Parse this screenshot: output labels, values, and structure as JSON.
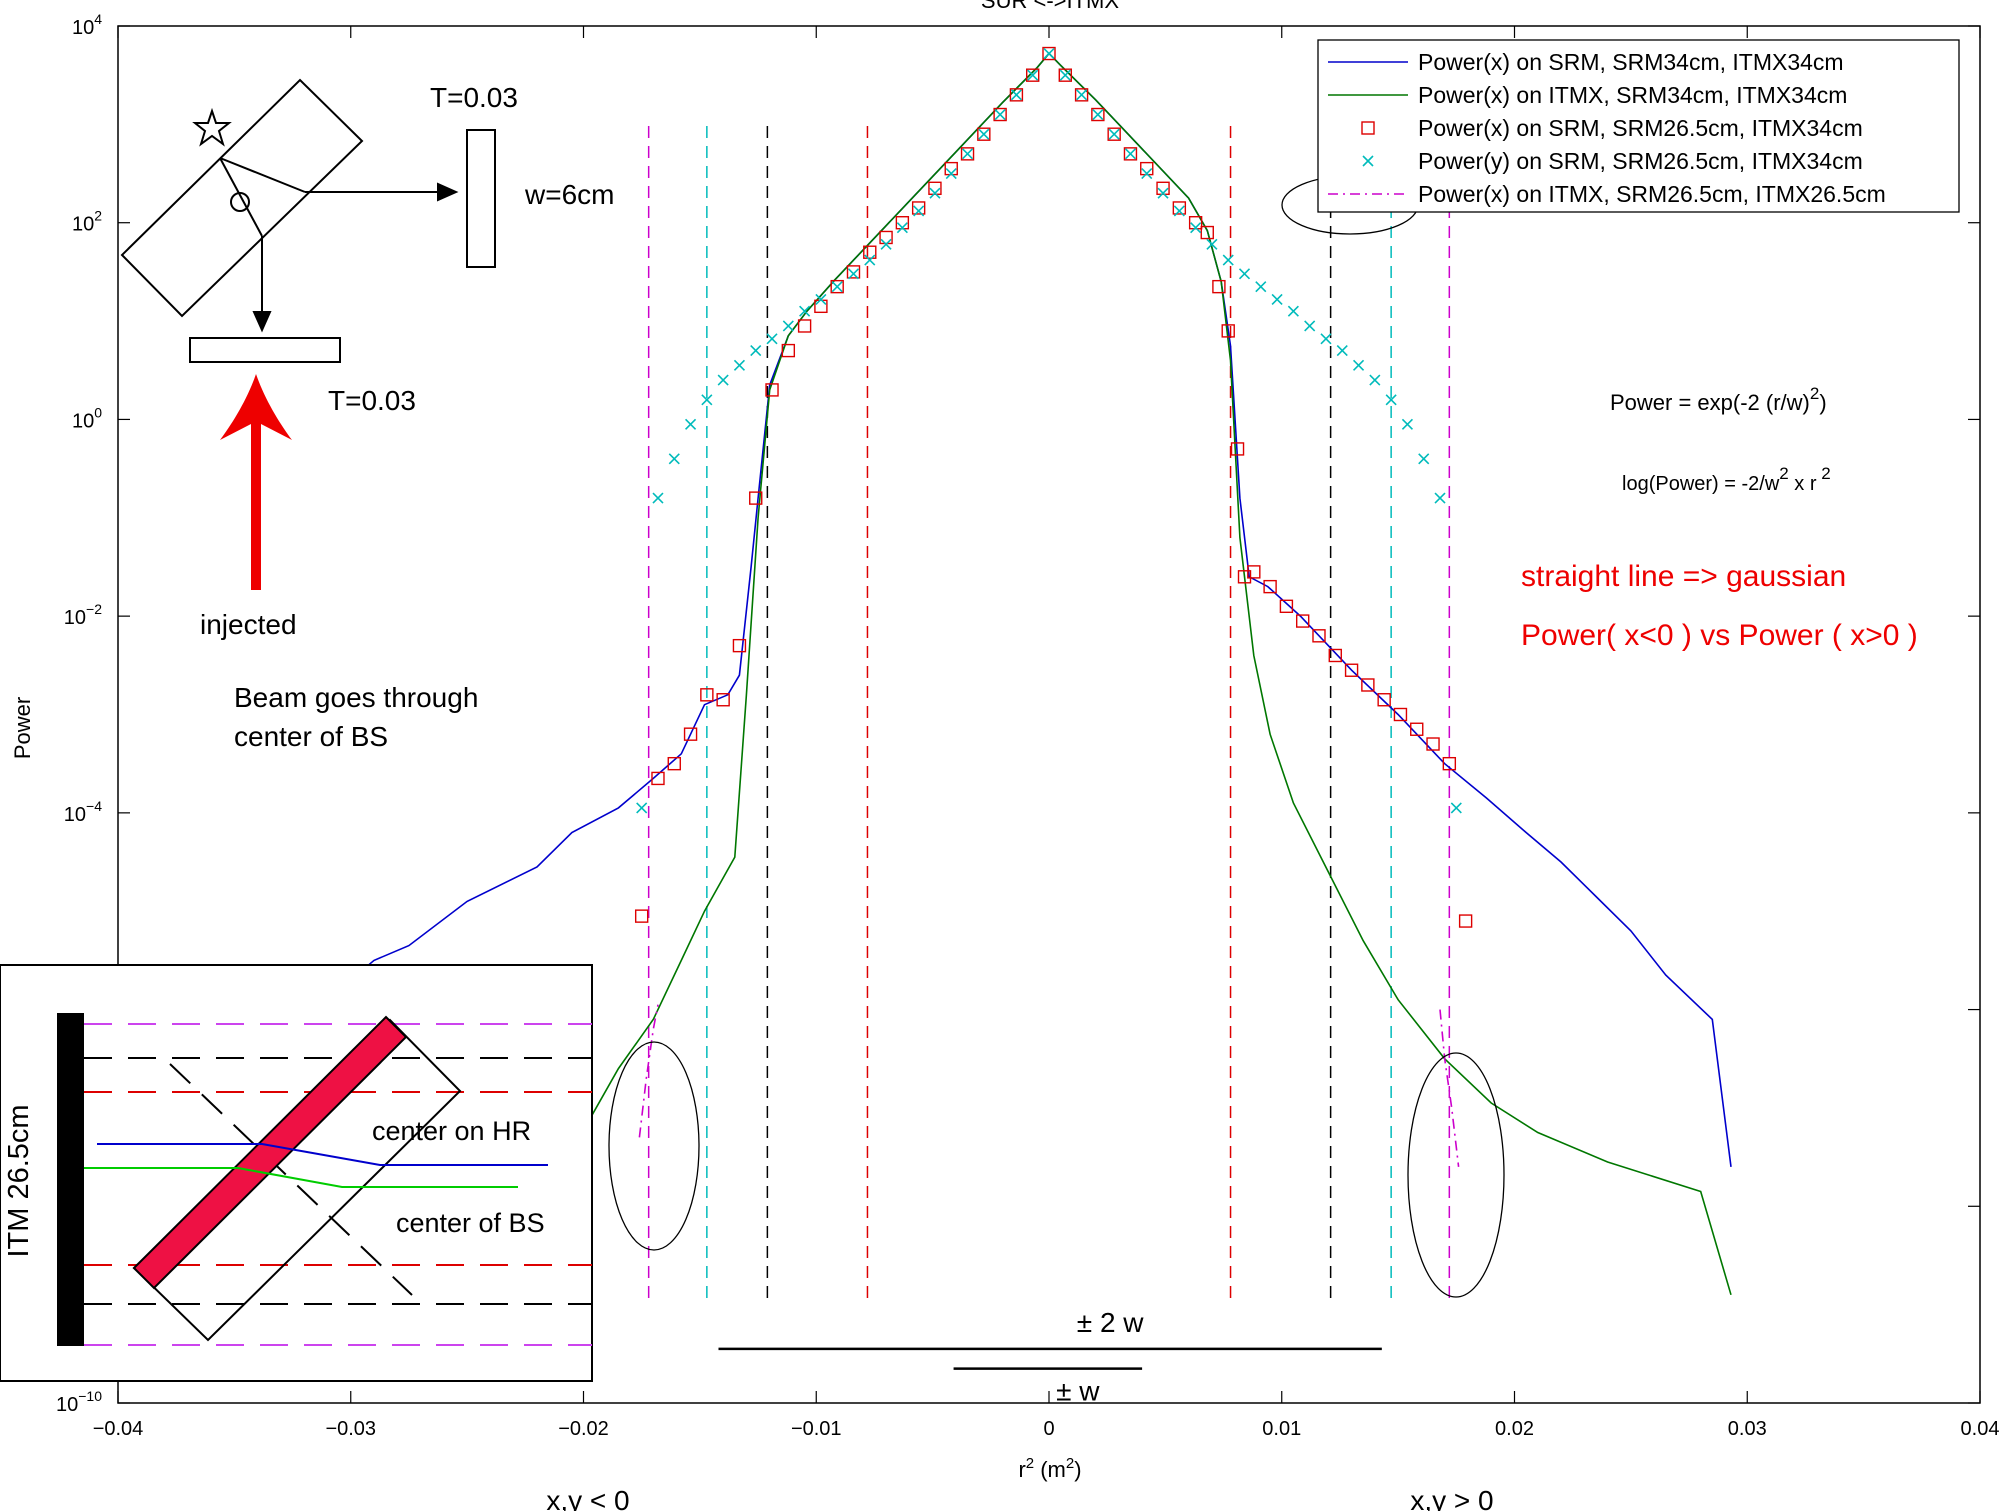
{
  "chart_data": {
    "type": "line",
    "title": "SUR <->ITMX",
    "xlabel_main": "r",
    "xlabel_sup": "2",
    "xlabel_unit": " (m",
    "xlabel_unit_sup": "2",
    "xlabel_close": ")",
    "ylabel": "Power",
    "xlim": [
      -0.04,
      0.04
    ],
    "ylim_log10": [
      -10,
      4
    ],
    "y_scale": "log",
    "grid": false,
    "legend_placement": "top-right",
    "x_ticks": [
      {
        "v": -0.04,
        "label": "−0.04"
      },
      {
        "v": -0.03,
        "label": "−0.03"
      },
      {
        "v": -0.02,
        "label": "−0.02"
      },
      {
        "v": -0.01,
        "label": "−0.01"
      },
      {
        "v": 0,
        "label": "0"
      },
      {
        "v": 0.01,
        "label": "0.01"
      },
      {
        "v": 0.02,
        "label": "0.02"
      },
      {
        "v": 0.03,
        "label": "0.03"
      },
      {
        "v": 0.04,
        "label": "0.04"
      }
    ],
    "y_ticks": [
      {
        "exp": 4,
        "base": "10",
        "sup": "4"
      },
      {
        "exp": 2,
        "base": "10",
        "sup": "2"
      },
      {
        "exp": 0,
        "base": "10",
        "sup": "0"
      },
      {
        "exp": -2,
        "base": "10",
        "sup": "−2"
      },
      {
        "exp": -4,
        "base": "10",
        "sup": "−4"
      },
      {
        "exp": -6,
        "base": "",
        "sup": ""
      },
      {
        "exp": -8,
        "base": "",
        "sup": ""
      },
      {
        "exp": -10,
        "base": "10",
        "sup": "−10"
      }
    ],
    "series": [
      {
        "name": "Power(x) on SRM, SRM34cm, ITMX34cm",
        "color": "#0000cc",
        "style": "solid",
        "marker": "none",
        "points": [
          [
            -0.0345,
            -6.4
          ],
          [
            -0.0335,
            -6.25
          ],
          [
            -0.031,
            -5.9
          ],
          [
            -0.029,
            -5.5
          ],
          [
            -0.0275,
            -5.35
          ],
          [
            -0.025,
            -4.9
          ],
          [
            -0.022,
            -4.55
          ],
          [
            -0.0205,
            -4.2
          ],
          [
            -0.0185,
            -3.95
          ],
          [
            -0.017,
            -3.65
          ],
          [
            -0.0158,
            -3.4
          ],
          [
            -0.0148,
            -2.9
          ],
          [
            -0.0138,
            -2.8
          ],
          [
            -0.0133,
            -2.6
          ],
          [
            -0.0128,
            -1.5
          ],
          [
            -0.0125,
            -0.8
          ],
          [
            -0.012,
            0.35
          ],
          [
            -0.0112,
            0.85
          ],
          [
            -0.0104,
            1.1
          ],
          [
            -0.0092,
            1.42
          ],
          [
            -0.008,
            1.72
          ],
          [
            -0.006,
            2.22
          ],
          [
            -0.004,
            2.72
          ],
          [
            -0.002,
            3.22
          ],
          [
            -0.0005,
            3.58
          ],
          [
            0,
            3.72
          ],
          [
            0.0005,
            3.6
          ],
          [
            0.002,
            3.25
          ],
          [
            0.004,
            2.75
          ],
          [
            0.006,
            2.25
          ],
          [
            0.0068,
            1.92
          ],
          [
            0.0074,
            1.4
          ],
          [
            0.0078,
            0.75
          ],
          [
            0.0082,
            -0.8
          ],
          [
            0.0086,
            -1.6
          ],
          [
            0.0094,
            -1.7
          ],
          [
            0.0108,
            -2.0
          ],
          [
            0.013,
            -2.55
          ],
          [
            0.015,
            -3.0
          ],
          [
            0.017,
            -3.5
          ],
          [
            0.0188,
            -3.85
          ],
          [
            0.0205,
            -4.2
          ],
          [
            0.022,
            -4.5
          ],
          [
            0.0235,
            -4.85
          ],
          [
            0.025,
            -5.2
          ],
          [
            0.0265,
            -5.65
          ],
          [
            0.0285,
            -6.1
          ],
          [
            0.0293,
            -7.6
          ]
        ]
      },
      {
        "name": "Power(x) on ITMX, SRM34cm, ITMX34cm",
        "color": "#007700",
        "style": "solid",
        "marker": "none",
        "points": [
          [
            -0.0197,
            -7.1
          ],
          [
            -0.0185,
            -6.6
          ],
          [
            -0.017,
            -6.1
          ],
          [
            -0.0158,
            -5.5
          ],
          [
            -0.0148,
            -5.0
          ],
          [
            -0.0135,
            -4.45
          ],
          [
            -0.013,
            -2.8
          ],
          [
            -0.0125,
            -1.0
          ],
          [
            -0.012,
            0.3
          ],
          [
            -0.0112,
            0.85
          ],
          [
            -0.0104,
            1.1
          ],
          [
            -0.0092,
            1.42
          ],
          [
            -0.008,
            1.72
          ],
          [
            -0.006,
            2.22
          ],
          [
            -0.004,
            2.72
          ],
          [
            -0.002,
            3.22
          ],
          [
            -0.0005,
            3.58
          ],
          [
            0,
            3.72
          ],
          [
            0.0005,
            3.6
          ],
          [
            0.002,
            3.25
          ],
          [
            0.004,
            2.75
          ],
          [
            0.006,
            2.25
          ],
          [
            0.0068,
            1.92
          ],
          [
            0.0074,
            1.4
          ],
          [
            0.0078,
            0.6
          ],
          [
            0.0082,
            -1.2
          ],
          [
            0.0088,
            -2.4
          ],
          [
            0.0095,
            -3.2
          ],
          [
            0.0105,
            -3.9
          ],
          [
            0.012,
            -4.6
          ],
          [
            0.0135,
            -5.3
          ],
          [
            0.015,
            -5.9
          ],
          [
            0.017,
            -6.5
          ],
          [
            0.019,
            -6.95
          ],
          [
            0.021,
            -7.25
          ],
          [
            0.024,
            -7.55
          ],
          [
            0.028,
            -7.85
          ],
          [
            0.0293,
            -8.9
          ]
        ]
      },
      {
        "name": "Power(x) on SRM, SRM26.5cm, ITMX34cm",
        "color": "#dd0000",
        "style": "none",
        "marker": "square",
        "points": [
          [
            -0.0175,
            -5.05
          ],
          [
            -0.0168,
            -3.65
          ],
          [
            -0.0161,
            -3.5
          ],
          [
            -0.0154,
            -3.2
          ],
          [
            -0.0147,
            -2.8
          ],
          [
            -0.014,
            -2.85
          ],
          [
            -0.0133,
            -2.3
          ],
          [
            -0.0126,
            -0.8
          ],
          [
            -0.0119,
            0.3
          ],
          [
            -0.0112,
            0.7
          ],
          [
            -0.0105,
            0.95
          ],
          [
            -0.0098,
            1.15
          ],
          [
            -0.0091,
            1.35
          ],
          [
            -0.0084,
            1.5
          ],
          [
            -0.0077,
            1.7
          ],
          [
            -0.007,
            1.85
          ],
          [
            -0.0063,
            2.0
          ],
          [
            -0.0056,
            2.15
          ],
          [
            -0.0049,
            2.35
          ],
          [
            -0.0042,
            2.55
          ],
          [
            -0.0035,
            2.7
          ],
          [
            -0.0028,
            2.9
          ],
          [
            -0.0021,
            3.1
          ],
          [
            -0.0014,
            3.3
          ],
          [
            -0.0007,
            3.5
          ],
          [
            0,
            3.72
          ],
          [
            0.0007,
            3.5
          ],
          [
            0.0014,
            3.3
          ],
          [
            0.0021,
            3.1
          ],
          [
            0.0028,
            2.9
          ],
          [
            0.0035,
            2.7
          ],
          [
            0.0042,
            2.55
          ],
          [
            0.0049,
            2.35
          ],
          [
            0.0056,
            2.15
          ],
          [
            0.0063,
            2.0
          ],
          [
            0.0068,
            1.9
          ],
          [
            0.0073,
            1.35
          ],
          [
            0.0077,
            0.9
          ],
          [
            0.0081,
            -0.3
          ],
          [
            0.0084,
            -1.6
          ],
          [
            0.0088,
            -1.55
          ],
          [
            0.0095,
            -1.7
          ],
          [
            0.0102,
            -1.9
          ],
          [
            0.0109,
            -2.05
          ],
          [
            0.0116,
            -2.2
          ],
          [
            0.0123,
            -2.4
          ],
          [
            0.013,
            -2.55
          ],
          [
            0.0137,
            -2.7
          ],
          [
            0.0144,
            -2.85
          ],
          [
            0.0151,
            -3.0
          ],
          [
            0.0158,
            -3.15
          ],
          [
            0.0165,
            -3.3
          ],
          [
            0.0172,
            -3.5
          ],
          [
            0.0179,
            -5.1
          ]
        ]
      },
      {
        "name": "Power(y) on SRM, SRM26.5cm, ITMX34cm",
        "color": "#00bbbb",
        "style": "none",
        "marker": "cross",
        "points": [
          [
            -0.0175,
            -3.95
          ],
          [
            -0.0168,
            -0.8
          ],
          [
            -0.0161,
            -0.4
          ],
          [
            -0.0154,
            -0.05
          ],
          [
            -0.0147,
            0.2
          ],
          [
            -0.014,
            0.4
          ],
          [
            -0.0133,
            0.55
          ],
          [
            -0.0126,
            0.7
          ],
          [
            -0.0119,
            0.82
          ],
          [
            -0.0112,
            0.95
          ],
          [
            -0.0105,
            1.1
          ],
          [
            -0.0098,
            1.22
          ],
          [
            -0.0091,
            1.35
          ],
          [
            -0.0084,
            1.48
          ],
          [
            -0.0077,
            1.62
          ],
          [
            -0.007,
            1.78
          ],
          [
            -0.0063,
            1.95
          ],
          [
            -0.0056,
            2.12
          ],
          [
            -0.0049,
            2.3
          ],
          [
            -0.0042,
            2.5
          ],
          [
            -0.0035,
            2.7
          ],
          [
            -0.0028,
            2.9
          ],
          [
            -0.0021,
            3.1
          ],
          [
            -0.0014,
            3.3
          ],
          [
            -0.0007,
            3.5
          ],
          [
            0,
            3.72
          ],
          [
            0.0007,
            3.5
          ],
          [
            0.0014,
            3.3
          ],
          [
            0.0021,
            3.1
          ],
          [
            0.0028,
            2.9
          ],
          [
            0.0035,
            2.7
          ],
          [
            0.0042,
            2.5
          ],
          [
            0.0049,
            2.3
          ],
          [
            0.0056,
            2.12
          ],
          [
            0.0063,
            1.95
          ],
          [
            0.007,
            1.78
          ],
          [
            0.0077,
            1.62
          ],
          [
            0.0084,
            1.48
          ],
          [
            0.0091,
            1.35
          ],
          [
            0.0098,
            1.22
          ],
          [
            0.0105,
            1.1
          ],
          [
            0.0112,
            0.95
          ],
          [
            0.0119,
            0.82
          ],
          [
            0.0126,
            0.7
          ],
          [
            0.0133,
            0.55
          ],
          [
            0.014,
            0.4
          ],
          [
            0.0147,
            0.2
          ],
          [
            0.0154,
            -0.05
          ],
          [
            0.0161,
            -0.4
          ],
          [
            0.0168,
            -0.8
          ],
          [
            0.0175,
            -3.95
          ]
        ]
      },
      {
        "name": "Power(x) on ITMX, SRM26.5cm, ITMX26.5cm",
        "color": "#cc00cc",
        "style": "dashdot",
        "marker": "none",
        "points_left": [
          [
            -0.0176,
            -7.3
          ],
          [
            -0.0173,
            -6.7
          ],
          [
            -0.017,
            -6.2
          ],
          [
            -0.0168,
            -5.95
          ]
        ],
        "points_right": [
          [
            0.0168,
            -6.0
          ],
          [
            0.017,
            -6.5
          ],
          [
            0.0173,
            -7.0
          ],
          [
            0.0176,
            -7.6
          ]
        ]
      }
    ],
    "vlines": [
      {
        "x": -0.0172,
        "color": "#cc00cc"
      },
      {
        "x": 0.0172,
        "color": "#cc00cc"
      },
      {
        "x": -0.0147,
        "color": "#00bbbb"
      },
      {
        "x": 0.0147,
        "color": "#00bbbb"
      },
      {
        "x": -0.0121,
        "color": "#000000"
      },
      {
        "x": 0.0121,
        "color": "#000000"
      },
      {
        "x": -0.0078,
        "color": "#dd0000"
      },
      {
        "x": 0.0078,
        "color": "#dd0000"
      }
    ],
    "bars": [
      {
        "x1": -0.0142,
        "x2": 0.0143,
        "y": -9.45,
        "label": "± 2 w"
      },
      {
        "x1": -0.0041,
        "x2": 0.004,
        "y": -9.65,
        "label": "± w"
      }
    ]
  },
  "annotations": {
    "t_right": "T=0.03",
    "w_label": "w=6cm",
    "t_bottom": "T=0.03",
    "injected": "injected",
    "beam_line1": "Beam goes through",
    "beam_line2": "center of BS",
    "formula1_a": "Power = exp(-2 (r/w)",
    "formula1_sup": "2",
    "formula1_b": ")",
    "formula2_a": "log(Power) = -2/w",
    "formula2_sup": "2",
    "formula2_b": " x r",
    "formula2_sup2": " 2",
    "red_line1": "straight line => gaussian",
    "red_line2": "Power( x<0 ) vs Power ( x>0 )",
    "xy_neg": "x,y < 0",
    "xy_pos": "x,y > 0"
  },
  "inset": {
    "itm_label": "ITM 26.5cm",
    "center_hr": "center on HR",
    "center_bs": "center of BS"
  }
}
